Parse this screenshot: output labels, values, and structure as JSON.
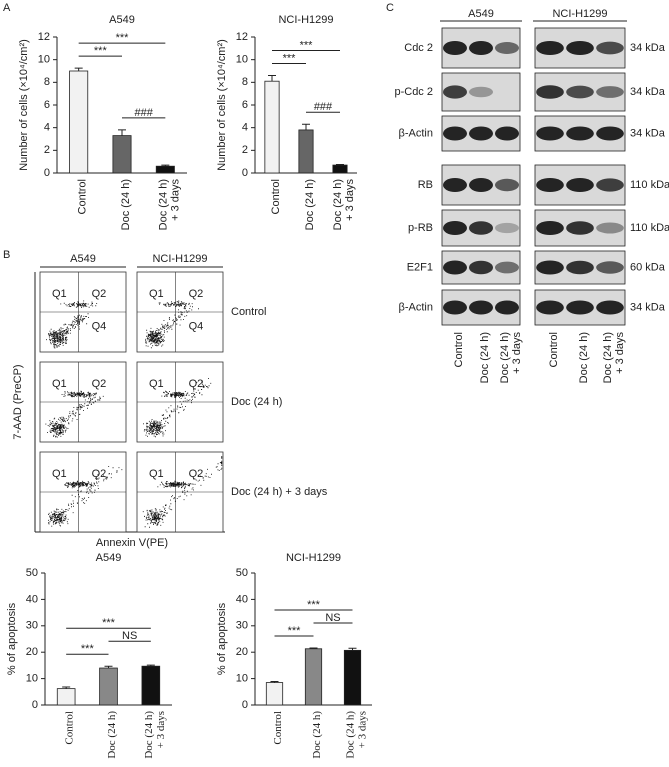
{
  "panel_labels": [
    "A",
    "B",
    "C"
  ],
  "chart_data": [
    {
      "type": "bar",
      "title": "A549",
      "y_label": "Number of cells (×10⁴/cm²)",
      "categories": [
        "Control",
        "Doc (24 h)",
        "Doc (24 h) + 3 days"
      ],
      "values": [
        9.0,
        3.3,
        0.6
      ],
      "errors": [
        0.25,
        0.5,
        0.1
      ],
      "colors": [
        "#f2f2f2",
        "#666666",
        "#111111"
      ],
      "ylim": [
        0,
        12
      ],
      "yticks": [
        0,
        2,
        4,
        6,
        8,
        10,
        12
      ],
      "annotations": [
        {
          "label": "***",
          "between": [
            0,
            1
          ]
        },
        {
          "label": "###",
          "between": [
            1,
            2
          ]
        },
        {
          "label": "***",
          "between": [
            0,
            2
          ]
        }
      ]
    },
    {
      "type": "bar",
      "title": "NCI-H1299",
      "y_label": "Number of cells (×10⁴/cm²)",
      "categories": [
        "Control",
        "Doc (24 h)",
        "Doc (24 h) + 3 days"
      ],
      "values": [
        8.1,
        3.8,
        0.7
      ],
      "errors": [
        0.5,
        0.5,
        0.05
      ],
      "colors": [
        "#f2f2f2",
        "#666666",
        "#111111"
      ],
      "ylim": [
        0,
        12
      ],
      "yticks": [
        0,
        2,
        4,
        6,
        8,
        10,
        12
      ],
      "annotations": [
        {
          "label": "***",
          "between": [
            0,
            1
          ]
        },
        {
          "label": "###",
          "between": [
            1,
            2
          ]
        },
        {
          "label": "***",
          "between": [
            0,
            2
          ]
        }
      ]
    },
    {
      "type": "bar",
      "title": "A549",
      "y_label": "% of apoptosis",
      "categories": [
        "Control",
        "Doc (24 h)",
        "Doc (24 h) + 3 days"
      ],
      "values": [
        6.2,
        14.0,
        14.7
      ],
      "errors": [
        0.6,
        0.7,
        0.4
      ],
      "colors": [
        "#f2f2f2",
        "#888888",
        "#111111"
      ],
      "ylim": [
        0,
        50
      ],
      "yticks": [
        0,
        10,
        20,
        30,
        40,
        50
      ],
      "annotations": [
        {
          "label": "***",
          "between": [
            0,
            1
          ]
        },
        {
          "label": "NS",
          "between": [
            1,
            2
          ]
        },
        {
          "label": "***",
          "between": [
            0,
            2
          ]
        }
      ]
    },
    {
      "type": "bar",
      "title": "NCI-H1299",
      "y_label": "% of apoptosis",
      "categories": [
        "Control",
        "Doc (24 h)",
        "Doc (24 h) + 3 days"
      ],
      "values": [
        8.5,
        21.3,
        20.7
      ],
      "errors": [
        0.4,
        0.3,
        0.8
      ],
      "colors": [
        "#f2f2f2",
        "#888888",
        "#111111"
      ],
      "ylim": [
        0,
        50
      ],
      "yticks": [
        0,
        10,
        20,
        30,
        40,
        50
      ],
      "annotations": [
        {
          "label": "***",
          "between": [
            0,
            1
          ]
        },
        {
          "label": "NS",
          "between": [
            1,
            2
          ]
        },
        {
          "label": "***",
          "between": [
            0,
            2
          ]
        }
      ]
    }
  ],
  "flow": {
    "columns": [
      "A549",
      "NCI-H1299"
    ],
    "rows": [
      "Control",
      "Doc (24 h)",
      "Doc (24 h) + 3 days"
    ],
    "y_label": "7-AAD (PreCP)",
    "x_label": "Annexin V(PE)",
    "quadrants": [
      "Q1",
      "Q2",
      "Q4"
    ]
  },
  "blot": {
    "columns": [
      "A549",
      "NCI-H1299"
    ],
    "rows": [
      {
        "protein": "Cdc 2",
        "size": "34 kDa"
      },
      {
        "protein": "p-Cdc 2",
        "size": "34 kDa"
      },
      {
        "protein": "β-Actin",
        "size": "34 kDa"
      },
      {
        "protein": "RB",
        "size": "110 kDa"
      },
      {
        "protein": "p-RB",
        "size": "110 kDa"
      },
      {
        "protein": "E2F1",
        "size": "60 kDa"
      },
      {
        "protein": "β-Actin",
        "size": "34 kDa"
      }
    ],
    "lanes": [
      "Control",
      "Doc (24 h)",
      "Doc (24 h) + 3 days"
    ]
  }
}
